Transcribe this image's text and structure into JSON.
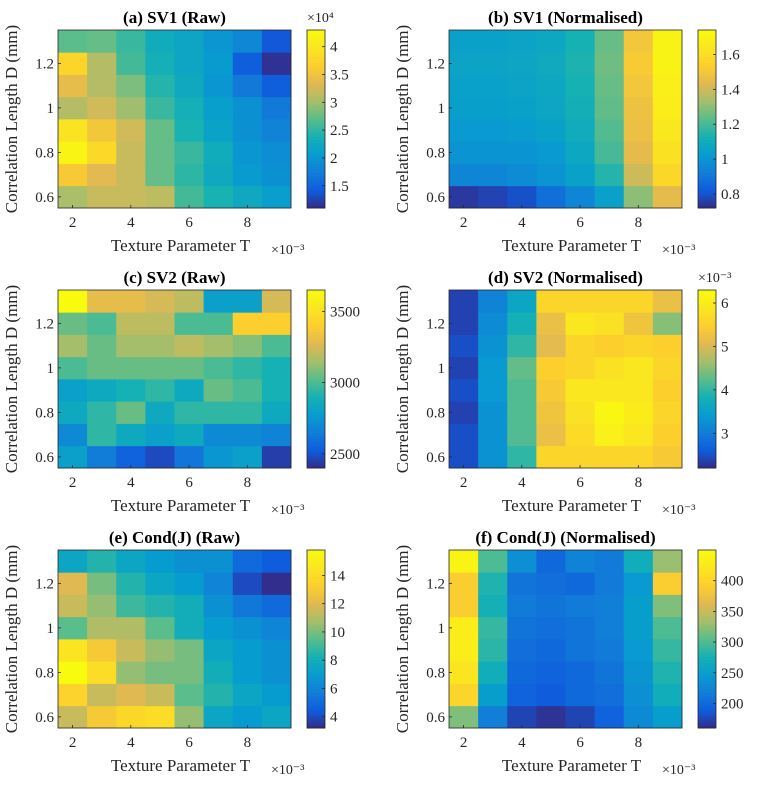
{
  "chart_data": [
    {
      "type": "heatmap",
      "title": "(a) SV1 (Raw)",
      "xlabel": "Texture Parameter T",
      "ylabel": "Correlation Length D (mm)",
      "x_exponent": "×10⁻³",
      "colorbar_exponent": "×10⁴",
      "x": [
        2,
        3,
        4,
        5,
        6,
        7,
        8,
        9
      ],
      "y": [
        0.6,
        0.7,
        0.8,
        0.9,
        1.0,
        1.1,
        1.2,
        1.3
      ],
      "xticks": [
        2,
        4,
        6,
        8
      ],
      "yticks": [
        0.6,
        0.8,
        1,
        1.2
      ],
      "clim": [
        1.1,
        4.3
      ],
      "colorbar_ticks": [
        "1.5",
        "2",
        "2.5",
        "3",
        "3.5",
        "4"
      ],
      "colorbar_tick_values": [
        1.5,
        2,
        2.5,
        3,
        3.5,
        4
      ],
      "z": [
        [
          3.05,
          3.2,
          3.2,
          3.15,
          2.6,
          2.4,
          2.25,
          2.1
        ],
        [
          3.6,
          3.35,
          3.2,
          2.75,
          2.5,
          2.25,
          2.05,
          1.95
        ],
        [
          4.2,
          3.8,
          3.2,
          2.75,
          2.55,
          2.3,
          2.0,
          1.9
        ],
        [
          3.95,
          3.55,
          3.25,
          2.75,
          2.4,
          2.15,
          1.95,
          1.8
        ],
        [
          3.1,
          3.25,
          3.0,
          2.55,
          2.35,
          2.1,
          1.95,
          1.7
        ],
        [
          3.4,
          3.1,
          2.85,
          2.45,
          2.25,
          2.0,
          1.7,
          1.45
        ],
        [
          3.75,
          3.1,
          2.6,
          2.35,
          2.2,
          2.05,
          1.45,
          1.15
        ],
        [
          2.7,
          2.75,
          2.55,
          2.3,
          2.2,
          2.0,
          1.85,
          1.4
        ]
      ]
    },
    {
      "type": "heatmap",
      "title": "(b) SV1 (Normalised)",
      "xlabel": "Texture Parameter T",
      "ylabel": "Correlation Length D (mm)",
      "x_exponent": "×10⁻³",
      "colorbar_exponent": "",
      "x": [
        2,
        3,
        4,
        5,
        6,
        7,
        8,
        9
      ],
      "y": [
        0.6,
        0.7,
        0.8,
        0.9,
        1.0,
        1.1,
        1.2,
        1.3
      ],
      "xticks": [
        2,
        4,
        6,
        8
      ],
      "yticks": [
        0.6,
        0.8,
        1,
        1.2
      ],
      "clim": [
        0.72,
        1.74
      ],
      "colorbar_ticks": [
        "0.8",
        "1",
        "1.2",
        "1.4",
        "1.6"
      ],
      "colorbar_tick_values": [
        0.8,
        1,
        1.2,
        1.4,
        1.6
      ],
      "z": [
        [
          0.75,
          0.77,
          0.8,
          0.88,
          0.95,
          1.05,
          1.3,
          1.45
        ],
        [
          0.95,
          0.95,
          0.97,
          1.0,
          1.05,
          1.15,
          1.4,
          1.58
        ],
        [
          1.0,
          1.0,
          1.0,
          1.02,
          1.08,
          1.2,
          1.45,
          1.62
        ],
        [
          1.02,
          1.02,
          1.03,
          1.05,
          1.1,
          1.22,
          1.47,
          1.65
        ],
        [
          1.04,
          1.04,
          1.05,
          1.07,
          1.12,
          1.24,
          1.48,
          1.67
        ],
        [
          1.05,
          1.05,
          1.06,
          1.08,
          1.13,
          1.25,
          1.5,
          1.68
        ],
        [
          1.06,
          1.06,
          1.07,
          1.09,
          1.14,
          1.26,
          1.52,
          1.7
        ],
        [
          1.05,
          1.05,
          1.06,
          1.08,
          1.13,
          1.25,
          1.5,
          1.7
        ]
      ]
    },
    {
      "type": "heatmap",
      "title": "(c) SV2 (Raw)",
      "xlabel": "Texture Parameter T",
      "ylabel": "Correlation Length D (mm)",
      "x_exponent": "×10⁻³",
      "colorbar_exponent": "",
      "x": [
        2,
        3,
        4,
        5,
        6,
        7,
        8,
        9
      ],
      "y": [
        0.6,
        0.7,
        0.8,
        0.9,
        1.0,
        1.1,
        1.2,
        1.3
      ],
      "xticks": [
        2,
        4,
        6,
        8
      ],
      "yticks": [
        0.6,
        0.8,
        1,
        1.2
      ],
      "clim": [
        2400,
        3650
      ],
      "colorbar_ticks": [
        "2500",
        "3000",
        "3500"
      ],
      "colorbar_tick_values": [
        2500,
        3000,
        3500
      ],
      "z": [
        [
          2800,
          2650,
          2550,
          2480,
          2620,
          2750,
          2800,
          2450
        ],
        [
          2700,
          2950,
          2850,
          2800,
          2850,
          2700,
          2700,
          2680
        ],
        [
          2850,
          2950,
          3050,
          2850,
          2950,
          2950,
          2950,
          2850
        ],
        [
          2800,
          2850,
          2900,
          2950,
          2850,
          3050,
          3000,
          2900
        ],
        [
          3000,
          3050,
          3050,
          3050,
          3050,
          3000,
          2950,
          2900
        ],
        [
          3150,
          3050,
          3150,
          3150,
          3200,
          3150,
          3100,
          3000
        ],
        [
          3050,
          3000,
          3200,
          3200,
          3000,
          3000,
          3400,
          3400
        ],
        [
          3650,
          3300,
          3300,
          3250,
          3200,
          2800,
          2800,
          3250
        ]
      ]
    },
    {
      "type": "heatmap",
      "title": "(d) SV2 (Normalised)",
      "xlabel": "Texture Parameter T",
      "ylabel": "Correlation Length D (mm)",
      "x_exponent": "×10⁻³",
      "colorbar_exponent": "×10⁻³",
      "x": [
        2,
        3,
        4,
        5,
        6,
        7,
        8,
        9
      ],
      "y": [
        0.6,
        0.7,
        0.8,
        0.9,
        1.0,
        1.1,
        1.2,
        1.3
      ],
      "xticks": [
        2,
        4,
        6,
        8
      ],
      "yticks": [
        0.6,
        0.8,
        1,
        1.2
      ],
      "clim": [
        2.2,
        6.3
      ],
      "colorbar_ticks": [
        "3",
        "4",
        "5",
        "6"
      ],
      "colorbar_tick_values": [
        3,
        4,
        5,
        6
      ],
      "z": [
        [
          2.5,
          3.3,
          4.0,
          5.6,
          5.6,
          5.6,
          5.6,
          5.4
        ],
        [
          2.5,
          3.3,
          4.2,
          5.2,
          5.7,
          6.1,
          5.9,
          5.5
        ],
        [
          2.4,
          3.3,
          4.2,
          5.3,
          5.8,
          6.2,
          6.0,
          5.6
        ],
        [
          2.5,
          3.4,
          4.2,
          5.4,
          5.9,
          5.9,
          5.9,
          5.5
        ],
        [
          2.4,
          3.4,
          4.3,
          5.5,
          5.6,
          5.8,
          5.9,
          5.6
        ],
        [
          2.5,
          3.3,
          4.0,
          5.1,
          5.6,
          5.5,
          5.6,
          5.5
        ],
        [
          2.4,
          3.2,
          3.8,
          5.2,
          5.9,
          5.8,
          5.3,
          4.5
        ],
        [
          2.4,
          3.1,
          3.6,
          5.6,
          5.6,
          5.6,
          5.6,
          5.2
        ]
      ]
    },
    {
      "type": "heatmap",
      "title": "(e) Cond(J) (Raw)",
      "xlabel": "Texture Parameter T",
      "ylabel": "Correlation Length D (mm)",
      "x_exponent": "×10⁻³",
      "colorbar_exponent": "",
      "x": [
        2,
        3,
        4,
        5,
        6,
        7,
        8,
        9
      ],
      "y": [
        0.6,
        0.7,
        0.8,
        0.9,
        1.0,
        1.1,
        1.2,
        1.3
      ],
      "xticks": [
        2,
        4,
        6,
        8
      ],
      "yticks": [
        0.6,
        0.8,
        1,
        1.2
      ],
      "clim": [
        3.2,
        15.8
      ],
      "colorbar_ticks": [
        "4",
        "6",
        "8",
        "10",
        "12",
        "14"
      ],
      "colorbar_tick_values": [
        4,
        6,
        8,
        10,
        12,
        14
      ],
      "z": [
        [
          11.5,
          13.0,
          13.8,
          14.0,
          10.5,
          7.5,
          7.0,
          7.5
        ],
        [
          13.5,
          11.5,
          12.0,
          11.5,
          9.5,
          8.5,
          7.5,
          7.0
        ],
        [
          15.8,
          14.0,
          10.5,
          10.0,
          10.0,
          8.0,
          7.0,
          6.5
        ],
        [
          14.5,
          13.0,
          11.5,
          10.5,
          10.0,
          7.5,
          7.0,
          6.5
        ],
        [
          9.5,
          11.0,
          11.0,
          9.5,
          8.0,
          7.0,
          6.5,
          6.0
        ],
        [
          11.5,
          10.5,
          9.0,
          8.5,
          8.0,
          6.5,
          5.5,
          5.0
        ],
        [
          12.0,
          10.0,
          8.5,
          7.5,
          7.0,
          6.0,
          4.0,
          3.3
        ],
        [
          7.5,
          8.5,
          7.5,
          7.0,
          6.5,
          6.5,
          5.0,
          4.5
        ]
      ]
    },
    {
      "type": "heatmap",
      "title": "(f) Cond(J) (Normalised)",
      "xlabel": "Texture Parameter T",
      "ylabel": "Correlation Length D (mm)",
      "x_exponent": "×10⁻³",
      "colorbar_exponent": "",
      "x": [
        2,
        3,
        4,
        5,
        6,
        7,
        8,
        9
      ],
      "y": [
        0.6,
        0.7,
        0.8,
        0.9,
        1.0,
        1.1,
        1.2,
        1.3
      ],
      "xticks": [
        2,
        4,
        6,
        8
      ],
      "yticks": [
        0.6,
        0.8,
        1,
        1.2
      ],
      "clim": [
        160,
        450
      ],
      "colorbar_ticks": [
        "200",
        "250",
        "300",
        "350",
        "400"
      ],
      "colorbar_tick_values": [
        200,
        250,
        300,
        350,
        400
      ],
      "z": [
        [
          320,
          220,
          175,
          165,
          175,
          195,
          230,
          250
        ],
        [
          400,
          250,
          195,
          190,
          200,
          205,
          235,
          270
        ],
        [
          420,
          270,
          200,
          195,
          200,
          210,
          240,
          280
        ],
        [
          430,
          285,
          205,
          200,
          210,
          215,
          245,
          290
        ],
        [
          430,
          290,
          210,
          205,
          210,
          220,
          250,
          300
        ],
        [
          390,
          275,
          215,
          210,
          215,
          220,
          250,
          320
        ],
        [
          390,
          280,
          210,
          205,
          200,
          215,
          245,
          390
        ],
        [
          440,
          300,
          235,
          200,
          225,
          215,
          270,
          330
        ]
      ]
    }
  ]
}
